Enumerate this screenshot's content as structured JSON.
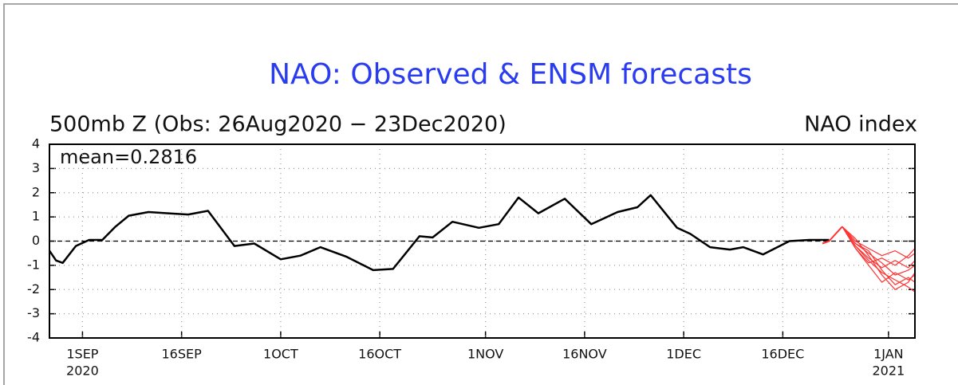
{
  "chart_data": {
    "type": "line",
    "title": "NAO: Observed & ENSM forecasts",
    "subtitle": "500mb Z (Obs: 26Aug2020 − 23Dec2020)",
    "y_label": "NAO index",
    "annotation": "mean=0.2816",
    "xlim": [
      "2020-08-27",
      "2021-01-05"
    ],
    "ylim": [
      -4,
      4
    ],
    "yticks": [
      -4,
      -3,
      -2,
      -1,
      0,
      1,
      2,
      3,
      4
    ],
    "xticks": [
      {
        "value": "2020-09-01",
        "label": "1SEP",
        "sublabel": "2020"
      },
      {
        "value": "2020-09-16",
        "label": "16SEP"
      },
      {
        "value": "2020-10-01",
        "label": "1OCT"
      },
      {
        "value": "2020-10-16",
        "label": "16OCT"
      },
      {
        "value": "2020-11-01",
        "label": "1NOV"
      },
      {
        "value": "2020-11-16",
        "label": "16NOV"
      },
      {
        "value": "2020-12-01",
        "label": "1DEC"
      },
      {
        "value": "2020-12-16",
        "label": "16DEC"
      },
      {
        "value": "2021-01-01",
        "label": "1JAN",
        "sublabel": "2021"
      }
    ],
    "grid": true,
    "zero_line": true,
    "series": [
      {
        "color": "#000000",
        "width": 2.5,
        "x": [
          "2020-08-27",
          "2020-08-28",
          "2020-08-29",
          "2020-08-31",
          "2020-09-02",
          "2020-09-04",
          "2020-09-06",
          "2020-09-08",
          "2020-09-11",
          "2020-09-14",
          "2020-09-17",
          "2020-09-20",
          "2020-09-24",
          "2020-09-27",
          "2020-10-01",
          "2020-10-04",
          "2020-10-07",
          "2020-10-11",
          "2020-10-15",
          "2020-10-18",
          "2020-10-22",
          "2020-10-24",
          "2020-10-27",
          "2020-10-31",
          "2020-11-03",
          "2020-11-06",
          "2020-11-09",
          "2020-11-13",
          "2020-11-17",
          "2020-11-21",
          "2020-11-24",
          "2020-11-26",
          "2020-11-30",
          "2020-12-02",
          "2020-12-05",
          "2020-12-08",
          "2020-12-10",
          "2020-12-13",
          "2020-12-17",
          "2020-12-20",
          "2020-12-23"
        ],
        "values": [
          -0.4,
          -0.8,
          -0.9,
          -0.2,
          0.05,
          0.05,
          0.6,
          1.05,
          1.2,
          1.15,
          1.1,
          1.25,
          -0.2,
          -0.1,
          -0.75,
          -0.6,
          -0.25,
          -0.65,
          -1.2,
          -1.15,
          0.2,
          0.15,
          0.8,
          0.55,
          0.7,
          1.8,
          1.15,
          1.75,
          0.7,
          1.2,
          1.4,
          1.9,
          0.55,
          0.3,
          -0.25,
          -0.35,
          -0.25,
          -0.55,
          0,
          0.05,
          0.05
        ]
      },
      {
        "color": "#ff3333",
        "width": 2,
        "x": [
          "2020-12-22",
          "2020-12-23",
          "2020-12-25"
        ],
        "values": [
          -0.1,
          0,
          0.6
        ]
      },
      {
        "color": "#ff3333",
        "width": 1.2,
        "x": [
          "2020-12-25",
          "2020-12-27",
          "2020-12-29",
          "2020-12-31",
          "2021-01-02",
          "2021-01-04",
          "2021-01-05"
        ],
        "values": [
          0.6,
          -0.2,
          -0.8,
          -1.3,
          -1.6,
          -1.9,
          -2.1
        ]
      },
      {
        "color": "#ff3333",
        "width": 1.2,
        "x": [
          "2020-12-25",
          "2020-12-27",
          "2020-12-29",
          "2020-12-31",
          "2021-01-02",
          "2021-01-04",
          "2021-01-05"
        ],
        "values": [
          0.6,
          -0.1,
          -0.5,
          -0.9,
          -1.4,
          -1.2,
          -1.0
        ]
      },
      {
        "color": "#ff3333",
        "width": 1.2,
        "x": [
          "2020-12-25",
          "2020-12-27",
          "2020-12-29",
          "2020-12-31",
          "2021-01-02",
          "2021-01-04",
          "2021-01-05"
        ],
        "values": [
          0.6,
          0,
          -0.3,
          -0.6,
          -0.4,
          -0.7,
          -0.5
        ]
      },
      {
        "color": "#ff3333",
        "width": 1.2,
        "x": [
          "2020-12-25",
          "2020-12-27",
          "2020-12-29",
          "2020-12-31",
          "2021-01-02",
          "2021-01-04",
          "2021-01-05"
        ],
        "values": [
          0.6,
          -0.3,
          -1.0,
          -1.7,
          -1.3,
          -1.6,
          -1.4
        ]
      },
      {
        "color": "#ff3333",
        "width": 1.2,
        "x": [
          "2020-12-25",
          "2020-12-27",
          "2020-12-29",
          "2020-12-31",
          "2021-01-02",
          "2021-01-04",
          "2021-01-05"
        ],
        "values": [
          0.6,
          -0.2,
          -0.7,
          -1.1,
          -0.8,
          -1.1,
          -0.8
        ]
      },
      {
        "color": "#ff3333",
        "width": 1.2,
        "x": [
          "2020-12-25",
          "2020-12-27",
          "2020-12-29",
          "2020-12-31",
          "2021-01-02",
          "2021-01-04",
          "2021-01-05"
        ],
        "values": [
          0.6,
          -0.1,
          -0.4,
          -1.2,
          -1.8,
          -1.5,
          -1.7
        ]
      },
      {
        "color": "#ff3333",
        "width": 1.2,
        "x": [
          "2020-12-25",
          "2020-12-27",
          "2020-12-29",
          "2020-12-31",
          "2021-01-02",
          "2021-01-04",
          "2021-01-05"
        ],
        "values": [
          0.6,
          -0.3,
          -0.9,
          -0.7,
          -1.0,
          -0.6,
          -0.3
        ]
      },
      {
        "color": "#ff3333",
        "width": 1.2,
        "x": [
          "2020-12-25",
          "2020-12-27",
          "2020-12-29",
          "2020-12-31",
          "2021-01-02",
          "2021-01-04",
          "2021-01-05"
        ],
        "values": [
          0.6,
          0.1,
          -0.6,
          -1.4,
          -2.0,
          -1.7,
          -1.3
        ]
      }
    ]
  }
}
